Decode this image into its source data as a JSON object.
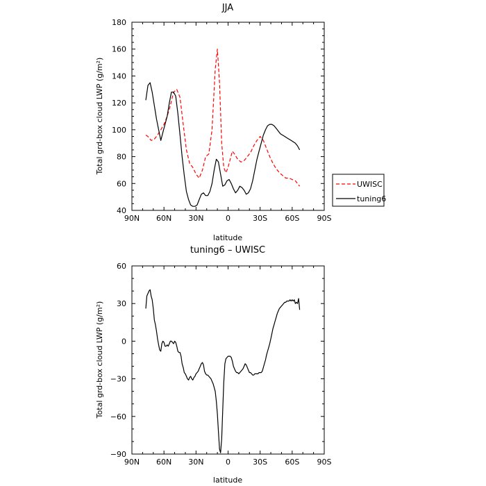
{
  "chart_data": [
    {
      "type": "line",
      "title": "JJA",
      "xlabel": "latitude",
      "ylabel": "Total grd-box cloud LWP (g/m²)",
      "xlim": [
        90,
        -90
      ],
      "ylim": [
        40,
        180
      ],
      "xticks": [
        90,
        60,
        30,
        0,
        -30,
        -60,
        -90
      ],
      "xtick_labels": [
        "90N",
        "60N",
        "30N",
        "0",
        "30S",
        "60S",
        "90S"
      ],
      "yticks": [
        40,
        60,
        80,
        100,
        120,
        140,
        160,
        180
      ],
      "ytick_labels": [
        "40",
        "60",
        "80",
        "100",
        "120",
        "140",
        "160",
        "180"
      ],
      "legend": "right",
      "series": [
        {
          "name": "UWISC",
          "color": "#ff0000",
          "dash": "dashed",
          "x": [
            77,
            75,
            72,
            69,
            66,
            63,
            60,
            57,
            54,
            51,
            48,
            45,
            42,
            39,
            36,
            33,
            30,
            27,
            24,
            21,
            18,
            15,
            12,
            10,
            8,
            6,
            4,
            2,
            0,
            -2,
            -4,
            -6,
            -9,
            -12,
            -15,
            -18,
            -21,
            -24,
            -27,
            -30,
            -33,
            -36,
            -39,
            -42,
            -45,
            -48,
            -51,
            -54,
            -57,
            -60,
            -63,
            -65,
            -67
          ],
          "y": [
            96,
            95,
            92,
            93,
            96,
            100,
            104,
            110,
            118,
            128,
            130,
            124,
            104,
            85,
            75,
            72,
            67,
            64,
            70,
            80,
            82,
            100,
            145,
            160,
            135,
            90,
            72,
            68,
            72,
            78,
            84,
            82,
            78,
            76,
            77,
            80,
            83,
            88,
            92,
            95,
            92,
            86,
            80,
            75,
            71,
            68,
            66,
            64,
            64,
            63,
            62,
            60,
            58
          ]
        },
        {
          "name": "tuning6",
          "color": "#000000",
          "dash": "solid",
          "x": [
            77,
            75,
            73,
            71,
            69,
            67,
            65,
            63,
            61,
            59,
            57,
            55,
            53,
            51,
            49,
            47,
            45,
            43,
            41,
            39,
            37,
            35,
            33,
            31,
            29,
            27,
            25,
            23,
            21,
            19,
            17,
            15,
            13,
            11,
            9,
            7,
            5,
            3,
            1,
            -1,
            -3,
            -5,
            -7,
            -9,
            -11,
            -13,
            -15,
            -17,
            -19,
            -21,
            -23,
            -25,
            -27,
            -29,
            -31,
            -33,
            -35,
            -37,
            -39,
            -41,
            -43,
            -45,
            -47,
            -49,
            -51,
            -53,
            -55,
            -57,
            -59,
            -61,
            -63,
            -65,
            -67
          ],
          "y": [
            122,
            133,
            135,
            128,
            118,
            108,
            100,
            92,
            98,
            104,
            110,
            120,
            128,
            128,
            125,
            112,
            96,
            80,
            66,
            54,
            48,
            44,
            43,
            43,
            44,
            48,
            52,
            53,
            51,
            51,
            54,
            60,
            70,
            78,
            76,
            67,
            58,
            59,
            62,
            63,
            60,
            56,
            53,
            55,
            58,
            57,
            55,
            52,
            53,
            56,
            62,
            70,
            78,
            84,
            90,
            96,
            100,
            103,
            104,
            104,
            103,
            101,
            99,
            97,
            96,
            95,
            94,
            93,
            92,
            91,
            90,
            88,
            85
          ]
        }
      ]
    },
    {
      "type": "line",
      "title": "tuning6 – UWISC",
      "xlabel": "latitude",
      "ylabel": "Total grd-box cloud LWP (g/m²)",
      "xlim": [
        90,
        -90
      ],
      "ylim": [
        -90,
        60
      ],
      "xticks": [
        90,
        60,
        30,
        0,
        -30,
        -60,
        -90
      ],
      "xtick_labels": [
        "90N",
        "60N",
        "30N",
        "0",
        "30S",
        "60S",
        "90S"
      ],
      "yticks": [
        -90,
        -60,
        -30,
        0,
        30,
        60
      ],
      "ytick_labels": [
        "−90",
        "−60",
        "−30",
        "0",
        "30",
        "60"
      ],
      "series": [
        {
          "color": "#000000",
          "dash": "solid",
          "x": [
            77,
            76,
            75,
            74,
            73,
            72,
            71,
            70,
            69,
            68,
            67,
            66,
            65,
            64,
            63,
            62,
            61,
            60,
            59,
            58,
            57,
            56,
            55,
            54,
            53,
            52,
            51,
            50,
            49,
            48,
            47,
            46,
            45,
            44,
            43,
            42,
            41,
            40,
            39,
            38,
            37,
            36,
            35,
            34,
            33,
            32,
            31,
            30,
            29,
            28,
            27,
            26,
            25,
            24,
            23,
            22,
            21,
            20,
            19,
            18,
            17,
            16,
            15,
            14,
            13,
            12,
            11,
            10,
            9,
            8,
            7,
            6,
            5,
            4,
            3,
            2,
            1,
            0,
            -1,
            -2,
            -3,
            -4,
            -5,
            -6,
            -7,
            -8,
            -9,
            -10,
            -11,
            -12,
            -13,
            -14,
            -15,
            -16,
            -17,
            -18,
            -19,
            -20,
            -21,
            -22,
            -23,
            -24,
            -25,
            -26,
            -27,
            -28,
            -29,
            -30,
            -31,
            -32,
            -33,
            -34,
            -35,
            -36,
            -37,
            -38,
            -39,
            -40,
            -41,
            -42,
            -43,
            -44,
            -45,
            -46,
            -47,
            -48,
            -49,
            -50,
            -51,
            -52,
            -53,
            -54,
            -55,
            -56,
            -57,
            -58,
            -59,
            -60,
            -61,
            -62,
            -63,
            -64,
            -65,
            -66,
            -67
          ],
          "y": [
            26,
            36,
            38,
            40,
            41,
            36,
            33,
            26,
            17,
            13,
            8,
            2,
            -3,
            -7,
            -8,
            -2,
            0,
            -1,
            -4,
            -4,
            -3,
            -4,
            -2,
            0,
            0,
            -1,
            -2,
            0,
            -1,
            -4,
            -8,
            -9,
            -9,
            -12,
            -18,
            -21,
            -25,
            -26,
            -28,
            -30,
            -31,
            -29,
            -28,
            -30,
            -31,
            -29,
            -28,
            -26,
            -25,
            -24,
            -22,
            -20,
            -18,
            -17,
            -19,
            -24,
            -26,
            -27,
            -27,
            -28,
            -29,
            -30,
            -32,
            -34,
            -37,
            -40,
            -48,
            -58,
            -72,
            -86,
            -89,
            -78,
            -55,
            -33,
            -18,
            -14,
            -13,
            -12,
            -12,
            -12,
            -13,
            -16,
            -20,
            -22,
            -24,
            -25,
            -25,
            -26,
            -25,
            -24,
            -23,
            -22,
            -20,
            -18,
            -19,
            -21,
            -23,
            -25,
            -25,
            -26,
            -27,
            -27,
            -26,
            -26,
            -26,
            -26,
            -25,
            -25,
            -25,
            -24,
            -21,
            -18,
            -15,
            -11,
            -8,
            -5,
            -2,
            2,
            6,
            10,
            13,
            16,
            19,
            22,
            24,
            26,
            27,
            28,
            29,
            30,
            31,
            31,
            32,
            32,
            32,
            33,
            32,
            33,
            32,
            33,
            30,
            31,
            30,
            34,
            25
          ]
        }
      ]
    }
  ]
}
